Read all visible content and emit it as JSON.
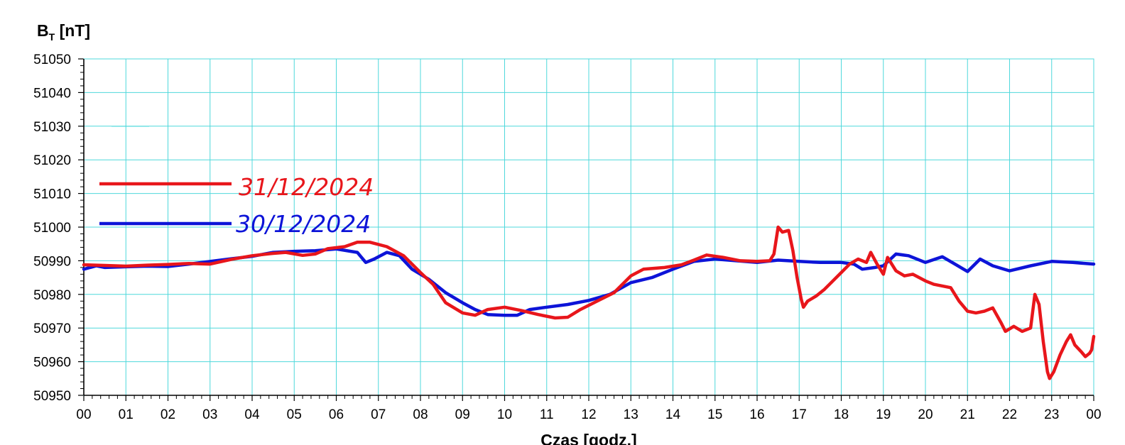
{
  "chart_data": {
    "type": "line",
    "ylabel_main": "B",
    "ylabel_sub": "T",
    "ylabel_unit": " [nT]",
    "xlabel": "Czas [godz.]",
    "ylim": [
      50950,
      51050
    ],
    "yticks": [
      "51050",
      "51040",
      "51030",
      "51020",
      "51010",
      "51000",
      "50990",
      "50980",
      "50970",
      "50960",
      "50950"
    ],
    "xlim": [
      0,
      24
    ],
    "xticks": [
      "00",
      "01",
      "02",
      "03",
      "04",
      "05",
      "06",
      "07",
      "08",
      "09",
      "10",
      "11",
      "12",
      "13",
      "14",
      "15",
      "16",
      "17",
      "18",
      "19",
      "20",
      "21",
      "22",
      "23",
      "00"
    ],
    "grid": true,
    "grid_color": "#4fd8dc",
    "legend_position": "upper-left",
    "series": [
      {
        "name": "31/12/2024",
        "color": "#e8161b",
        "points": [
          [
            0,
            50988.8
          ],
          [
            0.5,
            50988.6
          ],
          [
            1,
            50988.4
          ],
          [
            1.5,
            50988.7
          ],
          [
            2,
            50988.9
          ],
          [
            2.5,
            50989.2
          ],
          [
            3,
            50989.0
          ],
          [
            3.5,
            50990.4
          ],
          [
            4,
            50991.5
          ],
          [
            4.5,
            50992.2
          ],
          [
            4.8,
            50992.5
          ],
          [
            5.2,
            50991.6
          ],
          [
            5.5,
            50992.0
          ],
          [
            5.8,
            50993.6
          ],
          [
            6.2,
            50994.2
          ],
          [
            6.5,
            50995.5
          ],
          [
            6.8,
            50995.5
          ],
          [
            7.2,
            50994.2
          ],
          [
            7.6,
            50991.5
          ],
          [
            8,
            50986.5
          ],
          [
            8.3,
            50983.0
          ],
          [
            8.6,
            50977.5
          ],
          [
            9,
            50974.5
          ],
          [
            9.3,
            50973.8
          ],
          [
            9.6,
            50975.5
          ],
          [
            10,
            50976.2
          ],
          [
            10.4,
            50975.2
          ],
          [
            10.8,
            50974.0
          ],
          [
            11.2,
            50973.0
          ],
          [
            11.5,
            50973.2
          ],
          [
            11.8,
            50975.5
          ],
          [
            12.2,
            50978.0
          ],
          [
            12.6,
            50980.5
          ],
          [
            13,
            50985.5
          ],
          [
            13.3,
            50987.5
          ],
          [
            13.8,
            50988.0
          ],
          [
            14.2,
            50988.8
          ],
          [
            14.5,
            50990.2
          ],
          [
            14.8,
            50991.7
          ],
          [
            15.2,
            50991.0
          ],
          [
            15.6,
            50990.0
          ],
          [
            16,
            50989.8
          ],
          [
            16.3,
            50990.0
          ],
          [
            16.4,
            50992.0
          ],
          [
            16.5,
            51000.0
          ],
          [
            16.6,
            50998.5
          ],
          [
            16.75,
            50999.0
          ],
          [
            16.85,
            50993.0
          ],
          [
            16.95,
            50985.0
          ],
          [
            17.05,
            50978.5
          ],
          [
            17.1,
            50976.2
          ],
          [
            17.2,
            50978.0
          ],
          [
            17.4,
            50979.5
          ],
          [
            17.6,
            50981.5
          ],
          [
            17.8,
            50984.0
          ],
          [
            18,
            50986.5
          ],
          [
            18.2,
            50989.0
          ],
          [
            18.4,
            50990.5
          ],
          [
            18.6,
            50989.5
          ],
          [
            18.7,
            50992.5
          ],
          [
            18.85,
            50989.0
          ],
          [
            19,
            50986.0
          ],
          [
            19.1,
            50991.0
          ],
          [
            19.3,
            50987.0
          ],
          [
            19.5,
            50985.5
          ],
          [
            19.7,
            50986.0
          ],
          [
            20,
            50984.0
          ],
          [
            20.2,
            50983.0
          ],
          [
            20.4,
            50982.5
          ],
          [
            20.6,
            50982.0
          ],
          [
            20.8,
            50978.0
          ],
          [
            21,
            50975.0
          ],
          [
            21.2,
            50974.5
          ],
          [
            21.4,
            50975.0
          ],
          [
            21.6,
            50976.0
          ],
          [
            21.8,
            50971.5
          ],
          [
            21.9,
            50969.0
          ],
          [
            22.1,
            50970.5
          ],
          [
            22.3,
            50969.0
          ],
          [
            22.5,
            50970.0
          ],
          [
            22.6,
            50980.0
          ],
          [
            22.7,
            50977.0
          ],
          [
            22.8,
            50966.0
          ],
          [
            22.9,
            50957.0
          ],
          [
            22.95,
            50955.0
          ],
          [
            23.05,
            50957.0
          ],
          [
            23.2,
            50962.0
          ],
          [
            23.35,
            50966.0
          ],
          [
            23.45,
            50968.0
          ],
          [
            23.55,
            50965.0
          ],
          [
            23.7,
            50963.0
          ],
          [
            23.8,
            50961.5
          ],
          [
            23.9,
            50962.5
          ],
          [
            23.95,
            50963.5
          ],
          [
            24,
            50967.5
          ]
        ]
      },
      {
        "name": "30/12/2024",
        "color": "#0d14d8",
        "points": [
          [
            0,
            50987.5
          ],
          [
            0.3,
            50988.5
          ],
          [
            0.5,
            50988.0
          ],
          [
            1,
            50988.2
          ],
          [
            1.5,
            50988.4
          ],
          [
            2,
            50988.3
          ],
          [
            2.5,
            50989.0
          ],
          [
            3,
            50989.8
          ],
          [
            3.5,
            50990.6
          ],
          [
            4,
            50991.3
          ],
          [
            4.5,
            50992.5
          ],
          [
            5,
            50992.8
          ],
          [
            5.5,
            50993.0
          ],
          [
            6,
            50993.5
          ],
          [
            6.5,
            50992.5
          ],
          [
            6.7,
            50989.5
          ],
          [
            6.9,
            50990.5
          ],
          [
            7.2,
            50992.5
          ],
          [
            7.5,
            50991.5
          ],
          [
            7.8,
            50987.5
          ],
          [
            8.2,
            50984.5
          ],
          [
            8.6,
            50980.5
          ],
          [
            9,
            50977.5
          ],
          [
            9.3,
            50975.5
          ],
          [
            9.6,
            50974.0
          ],
          [
            10,
            50973.8
          ],
          [
            10.3,
            50973.8
          ],
          [
            10.6,
            50975.5
          ],
          [
            11,
            50976.2
          ],
          [
            11.5,
            50977.0
          ],
          [
            12,
            50978.2
          ],
          [
            12.5,
            50980.0
          ],
          [
            13,
            50983.5
          ],
          [
            13.5,
            50985.0
          ],
          [
            14,
            50987.5
          ],
          [
            14.5,
            50989.8
          ],
          [
            15,
            50990.5
          ],
          [
            15.5,
            50990.0
          ],
          [
            16,
            50989.5
          ],
          [
            16.5,
            50990.2
          ],
          [
            17,
            50989.8
          ],
          [
            17.5,
            50989.5
          ],
          [
            18,
            50989.5
          ],
          [
            18.3,
            50989.0
          ],
          [
            18.5,
            50987.5
          ],
          [
            18.8,
            50988.0
          ],
          [
            19,
            50988.5
          ],
          [
            19.3,
            50992.0
          ],
          [
            19.6,
            50991.5
          ],
          [
            20,
            50989.5
          ],
          [
            20.4,
            50991.2
          ],
          [
            20.7,
            50989.0
          ],
          [
            21,
            50986.8
          ],
          [
            21.3,
            50990.5
          ],
          [
            21.6,
            50988.5
          ],
          [
            22,
            50987.0
          ],
          [
            22.5,
            50988.5
          ],
          [
            23,
            50989.8
          ],
          [
            23.5,
            50989.5
          ],
          [
            24,
            50989.0
          ]
        ]
      }
    ]
  }
}
